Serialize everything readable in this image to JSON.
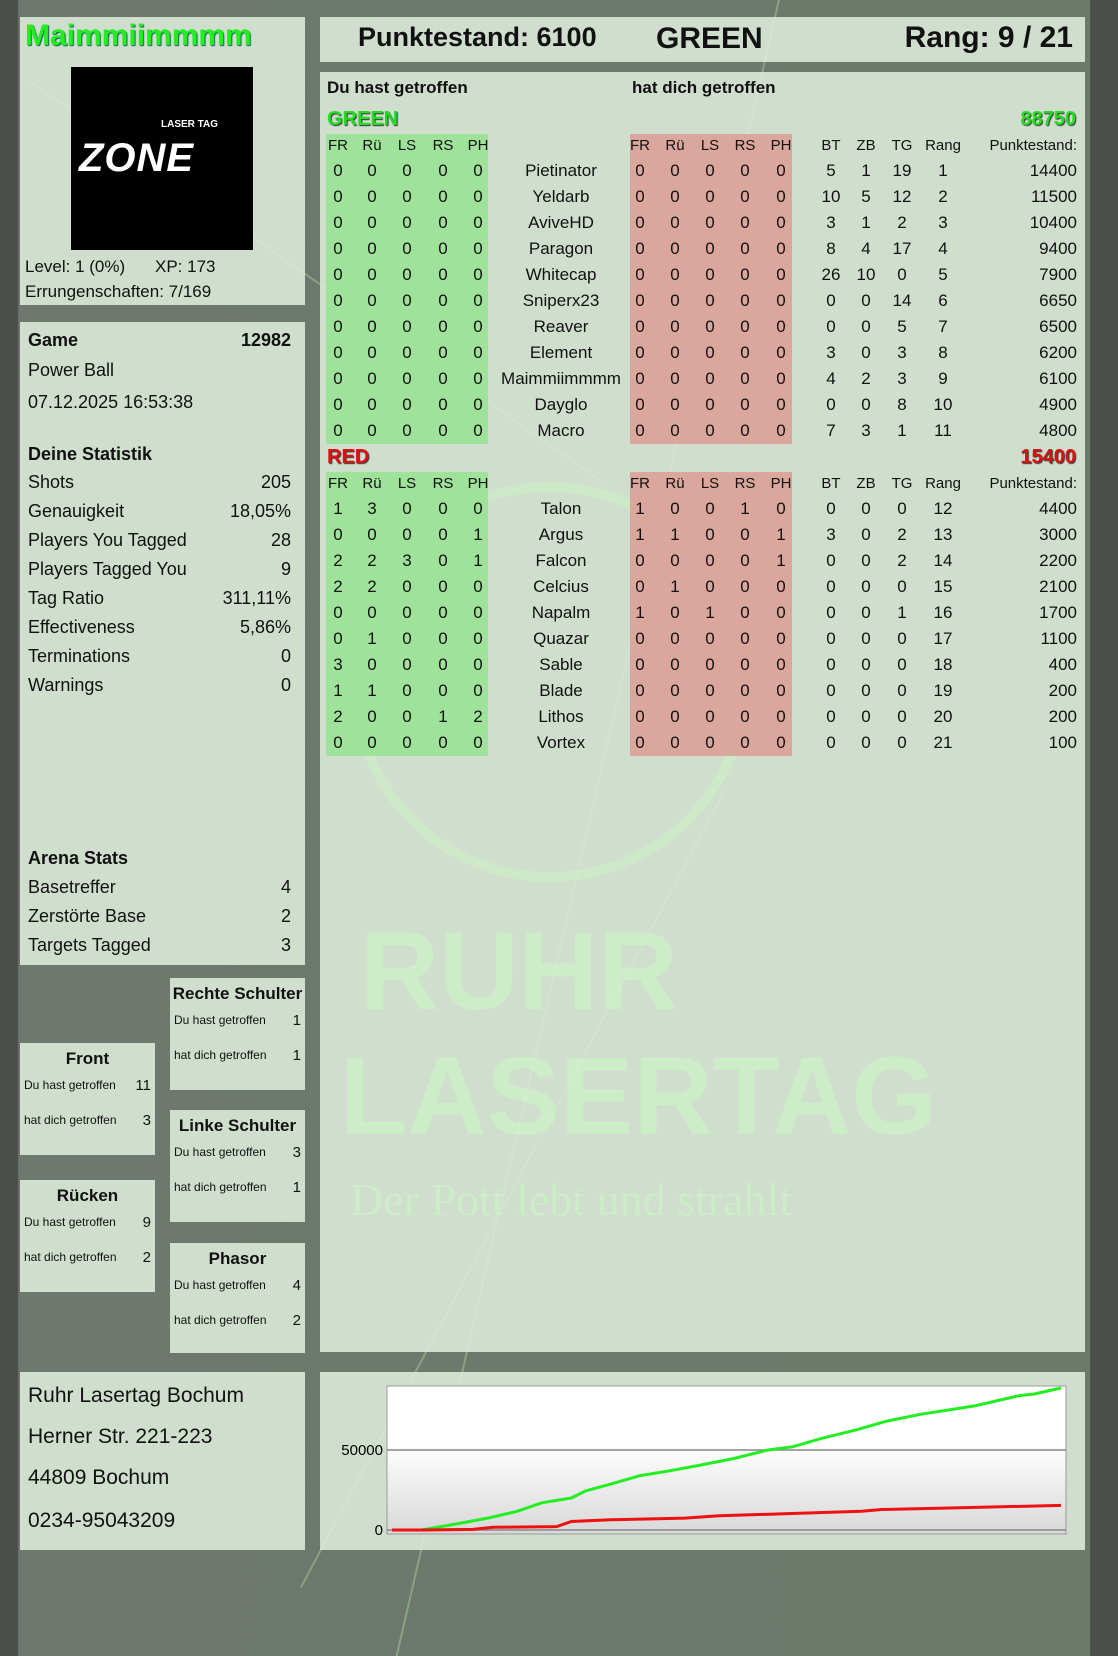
{
  "player": {
    "name": "Maimmiimmmm",
    "level": "Level: 1 (0%)",
    "xp": "XP: 173",
    "achievements": "Errungenschaften: 7/169"
  },
  "logo": {
    "text": "ZONE",
    "subtext": "LASER TAG"
  },
  "header": {
    "score": "Punktestand: 6100",
    "team": "GREEN",
    "rank": "Rang: 9 / 21"
  },
  "colors": {
    "green": "#22dd22",
    "red": "#e01010",
    "green_cells": "#9fe29a",
    "red_cells": "#dba79c"
  },
  "game": {
    "label": "Game",
    "id": "12982",
    "mode": "Power Ball",
    "datetime": "07.12.2025 16:53:38"
  },
  "stats": {
    "title": "Deine Statistik",
    "rows": [
      {
        "label": "Shots",
        "value": "205"
      },
      {
        "label": "Genauigkeit",
        "value": "18,05%"
      },
      {
        "label": "Players You Tagged",
        "value": "28"
      },
      {
        "label": "Players Tagged You",
        "value": "9"
      },
      {
        "label": "Tag Ratio",
        "value": "311,11%"
      },
      {
        "label": "Effectiveness",
        "value": "5,86%"
      },
      {
        "label": "Terminations",
        "value": "0"
      },
      {
        "label": "Warnings",
        "value": "0"
      }
    ]
  },
  "arena": {
    "title": "Arena Stats",
    "rows": [
      {
        "label": "Basetreffer",
        "value": "4"
      },
      {
        "label": "Zerstörte Base",
        "value": "2"
      },
      {
        "label": "Targets Tagged",
        "value": "3"
      }
    ]
  },
  "hitzones": {
    "you_hit": "Du hast getroffen",
    "hit_you": "hat dich getroffen",
    "front": {
      "title": "Front",
      "you": "11",
      "them": "3"
    },
    "back": {
      "title": "Rücken",
      "you": "9",
      "them": "2"
    },
    "right": {
      "title": "Rechte Schulter",
      "you": "1",
      "them": "1"
    },
    "left": {
      "title": "Linke Schulter",
      "you": "3",
      "them": "1"
    },
    "phasor": {
      "title": "Phasor",
      "you": "4",
      "them": "2"
    }
  },
  "address": [
    "Ruhr Lasertag Bochum",
    "Herner Str. 221-223",
    "44809 Bochum",
    "0234-95043209"
  ],
  "scoreboard": {
    "you_hit_label": "Du hast getroffen",
    "hit_you_label": "hat dich getroffen",
    "hit_columns": [
      "FR",
      "Rü",
      "LS",
      "RS",
      "PH"
    ],
    "stat_columns": [
      "BT",
      "ZB",
      "TG",
      "Rang",
      "Punktestand:"
    ],
    "teams": [
      {
        "name": "GREEN",
        "score": "88750",
        "color": "#22dd22",
        "players": [
          {
            "you": [
              0,
              0,
              0,
              0,
              0
            ],
            "name": "Pietinator",
            "them": [
              0,
              0,
              0,
              0,
              0
            ],
            "bt": 5,
            "zb": 1,
            "tg": 19,
            "rank": 1,
            "score": 14400
          },
          {
            "you": [
              0,
              0,
              0,
              0,
              0
            ],
            "name": "Yeldarb",
            "them": [
              0,
              0,
              0,
              0,
              0
            ],
            "bt": 10,
            "zb": 5,
            "tg": 12,
            "rank": 2,
            "score": 11500
          },
          {
            "you": [
              0,
              0,
              0,
              0,
              0
            ],
            "name": "AviveHD",
            "them": [
              0,
              0,
              0,
              0,
              0
            ],
            "bt": 3,
            "zb": 1,
            "tg": 2,
            "rank": 3,
            "score": 10400
          },
          {
            "you": [
              0,
              0,
              0,
              0,
              0
            ],
            "name": "Paragon",
            "them": [
              0,
              0,
              0,
              0,
              0
            ],
            "bt": 8,
            "zb": 4,
            "tg": 17,
            "rank": 4,
            "score": 9400
          },
          {
            "you": [
              0,
              0,
              0,
              0,
              0
            ],
            "name": "Whitecap",
            "them": [
              0,
              0,
              0,
              0,
              0
            ],
            "bt": 26,
            "zb": 10,
            "tg": 0,
            "rank": 5,
            "score": 7900
          },
          {
            "you": [
              0,
              0,
              0,
              0,
              0
            ],
            "name": "Sniperx23",
            "them": [
              0,
              0,
              0,
              0,
              0
            ],
            "bt": 0,
            "zb": 0,
            "tg": 14,
            "rank": 6,
            "score": 6650
          },
          {
            "you": [
              0,
              0,
              0,
              0,
              0
            ],
            "name": "Reaver",
            "them": [
              0,
              0,
              0,
              0,
              0
            ],
            "bt": 0,
            "zb": 0,
            "tg": 5,
            "rank": 7,
            "score": 6500
          },
          {
            "you": [
              0,
              0,
              0,
              0,
              0
            ],
            "name": "Element",
            "them": [
              0,
              0,
              0,
              0,
              0
            ],
            "bt": 3,
            "zb": 0,
            "tg": 3,
            "rank": 8,
            "score": 6200
          },
          {
            "you": [
              0,
              0,
              0,
              0,
              0
            ],
            "name": "Maimmiimmmm",
            "them": [
              0,
              0,
              0,
              0,
              0
            ],
            "bt": 4,
            "zb": 2,
            "tg": 3,
            "rank": 9,
            "score": 6100
          },
          {
            "you": [
              0,
              0,
              0,
              0,
              0
            ],
            "name": "Dayglo",
            "them": [
              0,
              0,
              0,
              0,
              0
            ],
            "bt": 0,
            "zb": 0,
            "tg": 8,
            "rank": 10,
            "score": 4900
          },
          {
            "you": [
              0,
              0,
              0,
              0,
              0
            ],
            "name": "Macro",
            "them": [
              0,
              0,
              0,
              0,
              0
            ],
            "bt": 7,
            "zb": 3,
            "tg": 1,
            "rank": 11,
            "score": 4800
          }
        ]
      },
      {
        "name": "RED",
        "score": "15400",
        "color": "#e01010",
        "players": [
          {
            "you": [
              1,
              3,
              0,
              0,
              0
            ],
            "name": "Talon",
            "them": [
              1,
              0,
              0,
              1,
              0
            ],
            "bt": 0,
            "zb": 0,
            "tg": 0,
            "rank": 12,
            "score": 4400
          },
          {
            "you": [
              0,
              0,
              0,
              0,
              1
            ],
            "name": "Argus",
            "them": [
              1,
              1,
              0,
              0,
              1
            ],
            "bt": 3,
            "zb": 0,
            "tg": 2,
            "rank": 13,
            "score": 3000
          },
          {
            "you": [
              2,
              2,
              3,
              0,
              1
            ],
            "name": "Falcon",
            "them": [
              0,
              0,
              0,
              0,
              1
            ],
            "bt": 0,
            "zb": 0,
            "tg": 2,
            "rank": 14,
            "score": 2200
          },
          {
            "you": [
              2,
              2,
              0,
              0,
              0
            ],
            "name": "Celcius",
            "them": [
              0,
              1,
              0,
              0,
              0
            ],
            "bt": 0,
            "zb": 0,
            "tg": 0,
            "rank": 15,
            "score": 2100
          },
          {
            "you": [
              0,
              0,
              0,
              0,
              0
            ],
            "name": "Napalm",
            "them": [
              1,
              0,
              1,
              0,
              0
            ],
            "bt": 0,
            "zb": 0,
            "tg": 1,
            "rank": 16,
            "score": 1700
          },
          {
            "you": [
              0,
              1,
              0,
              0,
              0
            ],
            "name": "Quazar",
            "them": [
              0,
              0,
              0,
              0,
              0
            ],
            "bt": 0,
            "zb": 0,
            "tg": 0,
            "rank": 17,
            "score": 1100
          },
          {
            "you": [
              3,
              0,
              0,
              0,
              0
            ],
            "name": "Sable",
            "them": [
              0,
              0,
              0,
              0,
              0
            ],
            "bt": 0,
            "zb": 0,
            "tg": 0,
            "rank": 18,
            "score": 400
          },
          {
            "you": [
              1,
              1,
              0,
              0,
              0
            ],
            "name": "Blade",
            "them": [
              0,
              0,
              0,
              0,
              0
            ],
            "bt": 0,
            "zb": 0,
            "tg": 0,
            "rank": 19,
            "score": 200
          },
          {
            "you": [
              2,
              0,
              0,
              1,
              2
            ],
            "name": "Lithos",
            "them": [
              0,
              0,
              0,
              0,
              0
            ],
            "bt": 0,
            "zb": 0,
            "tg": 0,
            "rank": 20,
            "score": 200
          },
          {
            "you": [
              0,
              0,
              0,
              0,
              0
            ],
            "name": "Vortex",
            "them": [
              0,
              0,
              0,
              0,
              0
            ],
            "bt": 0,
            "zb": 0,
            "tg": 0,
            "rank": 21,
            "score": 100
          }
        ]
      }
    ]
  },
  "watermark": {
    "line1": "RUHR",
    "line2": "LASERTAG",
    "slogan": "Der Pott lebt und strahlt"
  },
  "chart_data": {
    "type": "line",
    "ylim": [
      0,
      90000
    ],
    "yticks": [
      "0",
      "50000"
    ],
    "grid": true,
    "series": [
      {
        "color": "#22ee22",
        "points": [
          [
            0,
            0
          ],
          [
            4.4,
            0
          ],
          [
            9.9,
            4000
          ],
          [
            14.3,
            7400
          ],
          [
            18.7,
            11700
          ],
          [
            22.4,
            17000
          ],
          [
            26.8,
            20000
          ],
          [
            29,
            24500
          ],
          [
            32.7,
            28700
          ],
          [
            37.1,
            34000
          ],
          [
            41.5,
            37000
          ],
          [
            45.9,
            40400
          ],
          [
            51.1,
            44700
          ],
          [
            56.2,
            50000
          ],
          [
            59.9,
            52000
          ],
          [
            64.3,
            57400
          ],
          [
            69.5,
            62700
          ],
          [
            73.9,
            68000
          ],
          [
            79,
            72300
          ],
          [
            87.1,
            77600
          ],
          [
            93.8,
            84000
          ],
          [
            96,
            85000
          ],
          [
            100,
            88750
          ]
        ]
      },
      {
        "color": "#ee1111",
        "points": [
          [
            0,
            0
          ],
          [
            4.8,
            0
          ],
          [
            12.1,
            400
          ],
          [
            15.1,
            1700
          ],
          [
            24.6,
            2100
          ],
          [
            26.8,
            5300
          ],
          [
            32.7,
            6400
          ],
          [
            43.8,
            7400
          ],
          [
            48.9,
            8900
          ],
          [
            59.2,
            10200
          ],
          [
            70.2,
            11700
          ],
          [
            73.2,
            12800
          ],
          [
            84.2,
            13800
          ],
          [
            100,
            15400
          ]
        ]
      }
    ]
  }
}
